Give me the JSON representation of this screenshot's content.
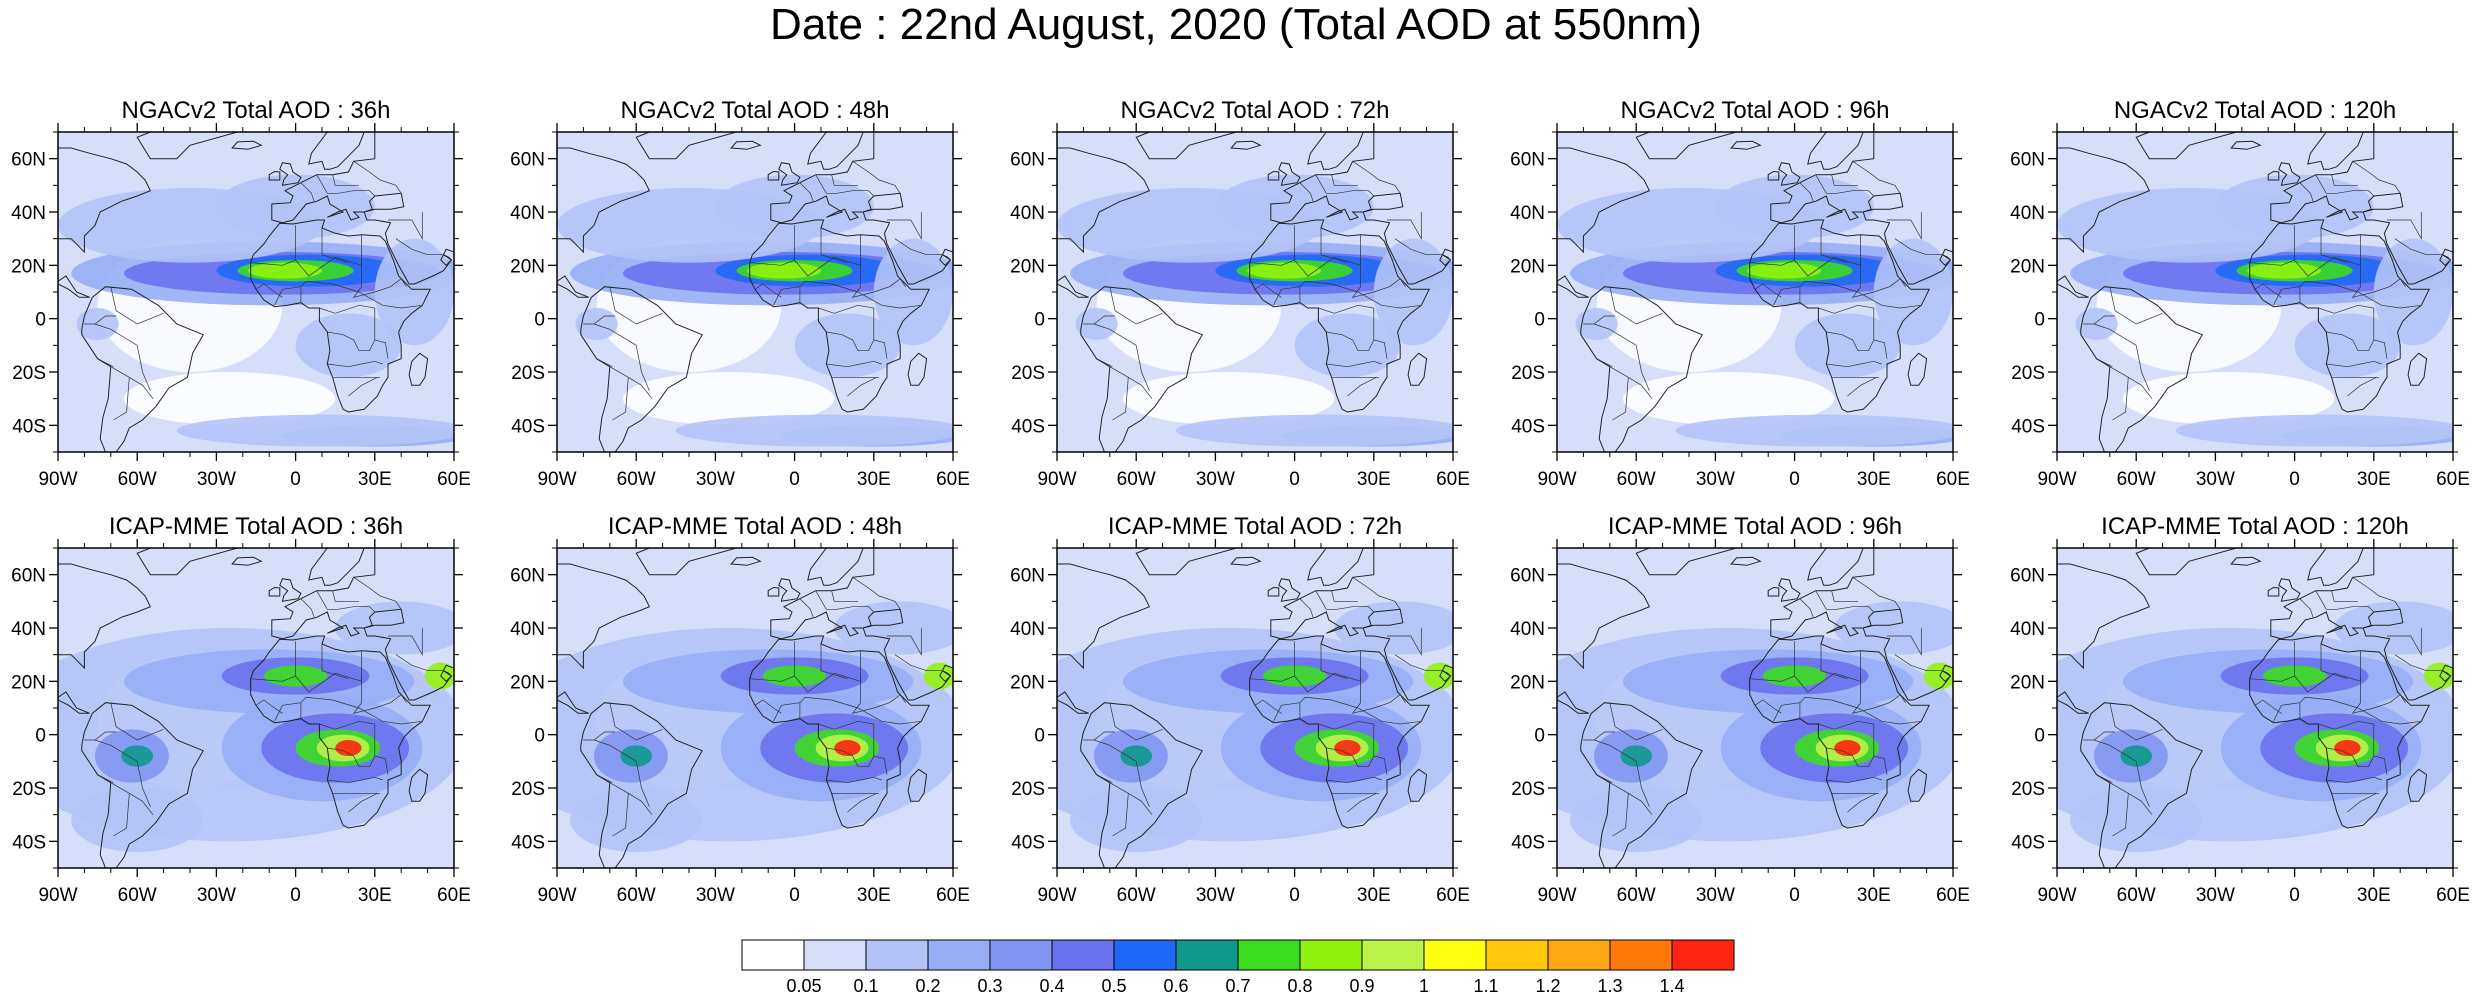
{
  "title": "Date : 22nd August, 2020 (Total AOD at 550nm)",
  "rows": [
    {
      "model": "NGACv2",
      "panels": [
        {
          "title": "NGACv2 Total AOD : 36h",
          "lead_hour": 36
        },
        {
          "title": "NGACv2 Total AOD : 48h",
          "lead_hour": 48
        },
        {
          "title": "NGACv2 Total AOD : 72h",
          "lead_hour": 72
        },
        {
          "title": "NGACv2 Total AOD : 96h",
          "lead_hour": 96
        },
        {
          "title": "NGACv2 Total AOD : 120h",
          "lead_hour": 120
        }
      ]
    },
    {
      "model": "ICAP-MME",
      "panels": [
        {
          "title": "ICAP-MME Total AOD : 36h",
          "lead_hour": 36
        },
        {
          "title": "ICAP-MME Total AOD : 48h",
          "lead_hour": 48
        },
        {
          "title": "ICAP-MME Total AOD : 72h",
          "lead_hour": 72
        },
        {
          "title": "ICAP-MME Total AOD : 96h",
          "lead_hour": 96
        },
        {
          "title": "ICAP-MME Total AOD : 120h",
          "lead_hour": 120
        }
      ]
    }
  ],
  "map_axes": {
    "lon_range": [
      -90,
      60
    ],
    "lat_range": [
      -50,
      70
    ],
    "lon_ticks": [
      "90W",
      "60W",
      "30W",
      "0",
      "30E",
      "60E"
    ],
    "lat_ticks": [
      "60N",
      "40N",
      "20N",
      "0",
      "20S",
      "40S"
    ]
  },
  "colorbar": {
    "labels": [
      "0.05",
      "0.1",
      "0.2",
      "0.3",
      "0.4",
      "0.5",
      "0.6",
      "0.7",
      "0.8",
      "0.9",
      "1",
      "1.1",
      "1.2",
      "1.3",
      "1.4"
    ],
    "colors": [
      "#ffffff",
      "#d6defa",
      "#b4c3f7",
      "#96aef5",
      "#8396f2",
      "#6a72ee",
      "#1f68f5",
      "#10998f",
      "#3cdc21",
      "#91f20f",
      "#bcf24a",
      "#ffff10",
      "#ffc80a",
      "#ffa614",
      "#ff7a0a",
      "#ff2312"
    ]
  }
}
